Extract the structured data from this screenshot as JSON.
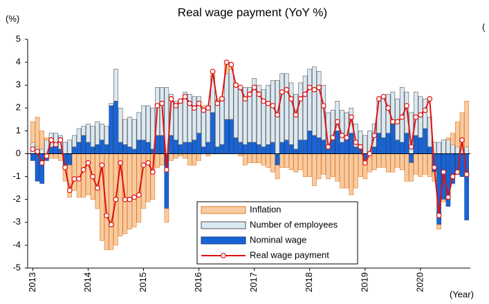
{
  "chart_data": {
    "type": "bar",
    "title": "Real wage payment (YoY %)",
    "y_unit": "(%)",
    "right_unit": "(",
    "x_unit": "(Year)",
    "categories": [
      "2013",
      null,
      null,
      null,
      null,
      null,
      null,
      null,
      null,
      null,
      null,
      null,
      "2014",
      null,
      null,
      null,
      null,
      null,
      null,
      null,
      null,
      null,
      null,
      null,
      "2015",
      null,
      null,
      null,
      null,
      null,
      null,
      null,
      null,
      null,
      null,
      null,
      "2016",
      null,
      null,
      null,
      null,
      null,
      null,
      null,
      null,
      null,
      null,
      null,
      "2017",
      null,
      null,
      null,
      null,
      null,
      null,
      null,
      null,
      null,
      null,
      null,
      "2018",
      null,
      null,
      null,
      null,
      null,
      null,
      null,
      null,
      null,
      null,
      null,
      "2019",
      null,
      null,
      null,
      null,
      null,
      null,
      null,
      null,
      null,
      null,
      null,
      "2020",
      null,
      null,
      null,
      null,
      null,
      null,
      null,
      null,
      null,
      null
    ],
    "ylim": [
      -5,
      5
    ],
    "yticks": [
      -5,
      -4,
      -3,
      -2,
      -1,
      0,
      1,
      2,
      3,
      4,
      5
    ],
    "stacked": true,
    "series": [
      {
        "name": "Inflation",
        "type": "bar",
        "color": "#f8cba0",
        "edge": "#e07b2b",
        "values": [
          0.9,
          1.3,
          0.8,
          0.1,
          -0.2,
          -0.2,
          -0.3,
          -0.7,
          -1.4,
          -1.6,
          -1.9,
          -1.9,
          -1.8,
          -2.0,
          -2.4,
          -3.8,
          -4.2,
          -4.2,
          -4.0,
          -3.6,
          -3.5,
          -3.3,
          -3.2,
          -3.0,
          -2.4,
          -2.1,
          -2.0,
          -0.6,
          -0.5,
          -0.6,
          -0.3,
          -0.2,
          -0.1,
          -0.2,
          -0.5,
          -0.5,
          -0.3,
          0.1,
          -0.1,
          0.2,
          0.1,
          0.1,
          0.4,
          0.2,
          0.1,
          -0.1,
          -0.5,
          -0.4,
          -0.4,
          -0.4,
          -0.5,
          -0.6,
          -0.8,
          -0.6,
          -0.6,
          -0.6,
          -0.7,
          -0.8,
          -0.7,
          -1.0,
          -1.0,
          -1.4,
          -1.1,
          -0.9,
          -1.1,
          -1.0,
          -1.2,
          -1.5,
          -1.5,
          -1.8,
          -1.5,
          -1.0,
          -0.8,
          -0.8,
          -0.7,
          -0.6,
          -0.6,
          -0.8,
          -0.8,
          -0.6,
          -0.7,
          -1.2,
          -0.8,
          -0.9,
          -1.0,
          -0.9,
          -1.0,
          -0.4,
          -0.2,
          -0.1,
          0.1,
          0.5,
          1.1,
          1.6,
          2.0
        ]
      },
      {
        "name": "Number of employees",
        "type": "bar",
        "color": "#dbe9f3",
        "edge": "#555555",
        "values": [
          0.5,
          0.3,
          0.2,
          0.6,
          0.6,
          0.5,
          0.6,
          0.5,
          0.6,
          0.5,
          0.6,
          0.4,
          0.8,
          0.9,
          1.0,
          0.7,
          0.8,
          0.1,
          1.4,
          1.5,
          1.1,
          1.3,
          1.3,
          1.2,
          1.5,
          1.6,
          1.8,
          2.1,
          2.1,
          2.9,
          1.8,
          1.7,
          2.0,
          2.2,
          2.1,
          1.9,
          1.6,
          1.7,
          1.6,
          1.6,
          2.0,
          2.0,
          2.0,
          2.2,
          2.3,
          2.3,
          2.5,
          2.4,
          2.8,
          2.6,
          2.5,
          2.6,
          2.7,
          3.2,
          3.0,
          2.9,
          2.7,
          2.4,
          2.5,
          2.8,
          2.7,
          3.0,
          2.9,
          2.4,
          1.6,
          1.3,
          1.3,
          1.4,
          1.1,
          1.1,
          1.0,
          0.8,
          0.8,
          0.9,
          1.0,
          1.4,
          1.8,
          1.7,
          1.4,
          1.8,
          2.4,
          1.8,
          1.8,
          1.9,
          1.8,
          1.3,
          1.3,
          0.5,
          0.5,
          0.6,
          0.6,
          0.4,
          0.3,
          0.2,
          0.3
        ]
      },
      {
        "name": "Nominal wage",
        "type": "bar",
        "color": "#1764d8",
        "edge": "#1a3d7a",
        "values": [
          -0.3,
          -1.2,
          -1.3,
          -0.3,
          0.3,
          0.4,
          0.2,
          -0.5,
          -0.5,
          0.3,
          0.5,
          0.8,
          0.5,
          0.3,
          0.4,
          0.6,
          0.4,
          2.1,
          2.3,
          0.5,
          0.4,
          0.3,
          0.2,
          0.6,
          0.6,
          0.5,
          0.2,
          0.8,
          0.8,
          -2.4,
          0.8,
          0.6,
          0.4,
          0.5,
          0.5,
          0.6,
          0.9,
          0.3,
          0.5,
          1.8,
          0.3,
          0.4,
          1.5,
          1.5,
          0.7,
          0.5,
          0.4,
          0.5,
          0.5,
          0.4,
          0.3,
          0.4,
          0.5,
          -0.5,
          0.5,
          0.6,
          0.4,
          0.2,
          0.6,
          0.6,
          1.0,
          0.8,
          0.7,
          0.6,
          0.2,
          0.6,
          1.0,
          0.5,
          0.7,
          0.9,
          0.3,
          0.2,
          -0.3,
          0.1,
          0.3,
          0.9,
          0.7,
          0.9,
          1.3,
          0.6,
          0.5,
          0.9,
          -0.4,
          0.8,
          0.7,
          1.1,
          0.3,
          -0.8,
          -3.1,
          -2.0,
          -2.3,
          -1.3,
          -0.9,
          -1.0,
          -2.9
        ]
      },
      {
        "name": "Real wage payment",
        "type": "line",
        "color": "#e01010",
        "values": [
          0.2,
          0.1,
          -0.4,
          -0.1,
          0.6,
          0.4,
          0.6,
          -0.6,
          -1.6,
          -1.1,
          -1.1,
          -0.7,
          -0.4,
          -1.0,
          -1.5,
          -0.5,
          -2.7,
          -3.1,
          -2.0,
          -0.4,
          -2.0,
          -2.0,
          -1.9,
          -1.8,
          -0.5,
          -0.4,
          -0.8,
          2.1,
          2.2,
          -0.7,
          2.4,
          2.1,
          2.3,
          2.5,
          2.2,
          2.0,
          2.2,
          1.9,
          2.0,
          3.6,
          2.2,
          2.4,
          4.0,
          3.9,
          3.0,
          2.9,
          2.4,
          2.6,
          2.9,
          2.6,
          2.3,
          2.2,
          2.1,
          1.7,
          2.7,
          2.8,
          2.4,
          1.7,
          2.4,
          2.6,
          2.9,
          2.8,
          2.9,
          2.1,
          0.3,
          0.7,
          1.4,
          0.8,
          0.7,
          1.6,
          0.5,
          0.3,
          -0.4,
          0.0,
          0.8,
          2.4,
          2.5,
          2.0,
          1.4,
          1.4,
          1.6,
          2.1,
          0.3,
          1.6,
          1.7,
          1.9,
          2.4,
          -0.6,
          -2.7,
          -0.8,
          -1.9,
          -1.0,
          -0.8,
          0.6,
          -0.9
        ]
      }
    ]
  }
}
